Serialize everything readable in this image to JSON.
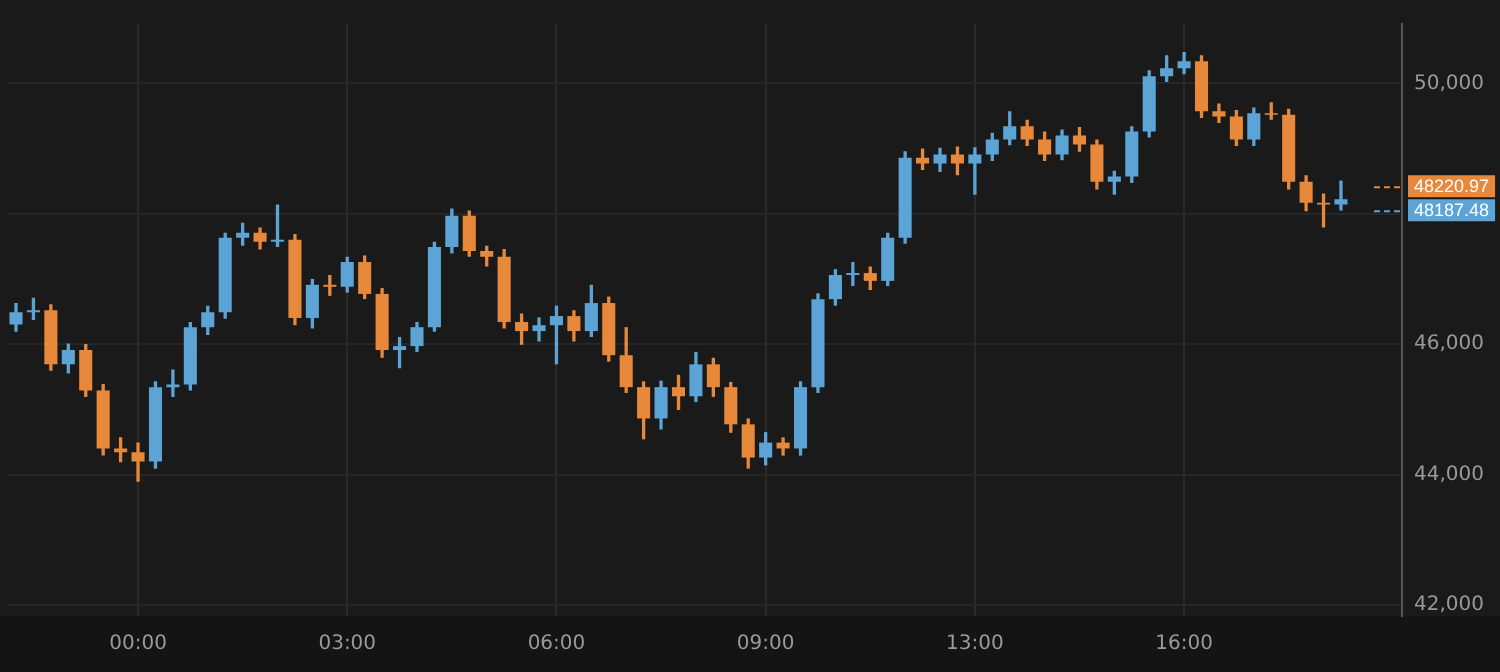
{
  "chart_data": {
    "type": "candlestick",
    "categories": [
      null,
      null,
      null,
      null,
      null,
      null,
      null,
      "00:00",
      null,
      null,
      null,
      null,
      null,
      null,
      null,
      null,
      null,
      null,
      null,
      "03:00",
      null,
      null,
      null,
      null,
      null,
      null,
      null,
      null,
      null,
      null,
      null,
      "06:00",
      null,
      null,
      null,
      null,
      null,
      null,
      null,
      null,
      null,
      null,
      null,
      "09:00",
      null,
      null,
      null,
      null,
      null,
      null,
      null,
      null,
      null,
      null,
      null,
      "13:00",
      null,
      null,
      null,
      null,
      null,
      null,
      null,
      null,
      null,
      null,
      null,
      "16:00",
      null,
      null,
      null,
      null,
      null,
      null,
      null,
      null,
      null,
      null,
      null,
      null
    ],
    "ohlc": [
      [
        46300,
        46620,
        46200,
        46490
      ],
      [
        46490,
        46700,
        46380,
        46520
      ],
      [
        46520,
        46600,
        45600,
        45690
      ],
      [
        45690,
        46000,
        45560,
        45910
      ],
      [
        45910,
        45990,
        45200,
        45290
      ],
      [
        45290,
        45380,
        44300,
        44400
      ],
      [
        44400,
        44560,
        44200,
        44340
      ],
      [
        44340,
        44480,
        43900,
        44200
      ],
      [
        44200,
        45420,
        44100,
        45340
      ],
      [
        45340,
        45600,
        45200,
        45380
      ],
      [
        45380,
        46330,
        45300,
        46260
      ],
      [
        46260,
        46580,
        46150,
        46490
      ],
      [
        46490,
        47700,
        46400,
        47630
      ],
      [
        47630,
        47850,
        47520,
        47710
      ],
      [
        47710,
        47780,
        47460,
        47570
      ],
      [
        47570,
        48130,
        47500,
        47600
      ],
      [
        47600,
        47680,
        46300,
        46400
      ],
      [
        46400,
        46990,
        46250,
        46910
      ],
      [
        46910,
        47050,
        46750,
        46880
      ],
      [
        46880,
        47330,
        46800,
        47260
      ],
      [
        47260,
        47350,
        46700,
        46770
      ],
      [
        46770,
        46850,
        45800,
        45910
      ],
      [
        45910,
        46100,
        45640,
        45970
      ],
      [
        45970,
        46330,
        45890,
        46260
      ],
      [
        46260,
        47560,
        46200,
        47490
      ],
      [
        47490,
        48070,
        47400,
        47970
      ],
      [
        47970,
        48040,
        47350,
        47430
      ],
      [
        47430,
        47500,
        47200,
        47340
      ],
      [
        47340,
        47450,
        46250,
        46340
      ],
      [
        46340,
        46460,
        46000,
        46200
      ],
      [
        46200,
        46400,
        46050,
        46290
      ],
      [
        46290,
        46580,
        45700,
        46430
      ],
      [
        46430,
        46510,
        46050,
        46200
      ],
      [
        46200,
        46900,
        46120,
        46630
      ],
      [
        46630,
        46720,
        45740,
        45830
      ],
      [
        45830,
        46250,
        45260,
        45340
      ],
      [
        45340,
        45420,
        44550,
        44860
      ],
      [
        44860,
        45430,
        44700,
        45340
      ],
      [
        45340,
        45520,
        45000,
        45200
      ],
      [
        45200,
        45870,
        45120,
        45690
      ],
      [
        45690,
        45780,
        45200,
        45340
      ],
      [
        45340,
        45410,
        44650,
        44770
      ],
      [
        44770,
        44850,
        44100,
        44260
      ],
      [
        44260,
        44640,
        44150,
        44490
      ],
      [
        44490,
        44560,
        44300,
        44400
      ],
      [
        44400,
        45420,
        44300,
        45340
      ],
      [
        45340,
        46770,
        45260,
        46690
      ],
      [
        46690,
        47140,
        46600,
        47060
      ],
      [
        47060,
        47250,
        46900,
        47090
      ],
      [
        47090,
        47180,
        46840,
        46970
      ],
      [
        46970,
        47700,
        46900,
        47630
      ],
      [
        47630,
        48950,
        47550,
        48860
      ],
      [
        48860,
        48990,
        48680,
        48770
      ],
      [
        48770,
        49000,
        48650,
        48910
      ],
      [
        48910,
        49020,
        48600,
        48770
      ],
      [
        48770,
        49010,
        48300,
        48910
      ],
      [
        48910,
        49230,
        48820,
        49140
      ],
      [
        49140,
        49560,
        49060,
        49340
      ],
      [
        49340,
        49430,
        49050,
        49140
      ],
      [
        49140,
        49250,
        48820,
        48910
      ],
      [
        48910,
        49280,
        48830,
        49200
      ],
      [
        49200,
        49320,
        48960,
        49060
      ],
      [
        49060,
        49130,
        48380,
        48490
      ],
      [
        48490,
        48650,
        48300,
        48570
      ],
      [
        48570,
        49330,
        48480,
        49260
      ],
      [
        49260,
        50190,
        49180,
        50110
      ],
      [
        50110,
        50420,
        50030,
        50230
      ],
      [
        50230,
        50470,
        50150,
        50340
      ],
      [
        50340,
        50420,
        49480,
        49570
      ],
      [
        49570,
        49680,
        49400,
        49490
      ],
      [
        49490,
        49580,
        49050,
        49140
      ],
      [
        49140,
        49620,
        49050,
        49540
      ],
      [
        49540,
        49700,
        49450,
        49520
      ],
      [
        49520,
        49600,
        48380,
        48490
      ],
      [
        48490,
        48580,
        48050,
        48170
      ],
      [
        48170,
        48300,
        47800,
        48140
      ],
      [
        48140,
        48500,
        48060,
        48220.97
      ],
      null,
      null,
      null
    ],
    "colors": [
      "#5ca4d6",
      "#5ca4d6",
      "#e8883a",
      "#5ca4d6",
      "#e8883a",
      "#e8883a",
      "#e8883a",
      "#e8883a",
      "#5ca4d6",
      "#5ca4d6",
      "#5ca4d6",
      "#5ca4d6",
      "#5ca4d6",
      "#5ca4d6",
      "#e8883a",
      "#5ca4d6",
      "#e8883a",
      "#5ca4d6",
      "#e8883a",
      "#5ca4d6",
      "#e8883a",
      "#e8883a",
      "#5ca4d6",
      "#5ca4d6",
      "#5ca4d6",
      "#5ca4d6",
      "#e8883a",
      "#e8883a",
      "#e8883a",
      "#e8883a",
      "#5ca4d6",
      "#5ca4d6",
      "#e8883a",
      "#5ca4d6",
      "#e8883a",
      "#e8883a",
      "#e8883a",
      "#5ca4d6",
      "#e8883a",
      "#5ca4d6",
      "#e8883a",
      "#e8883a",
      "#e8883a",
      "#5ca4d6",
      "#e8883a",
      "#5ca4d6",
      "#5ca4d6",
      "#5ca4d6",
      "#5ca4d6",
      "#e8883a",
      "#5ca4d6",
      "#5ca4d6",
      "#e8883a",
      "#5ca4d6",
      "#e8883a",
      "#5ca4d6",
      "#5ca4d6",
      "#5ca4d6",
      "#e8883a",
      "#e8883a",
      "#5ca4d6",
      "#e8883a",
      "#e8883a",
      "#5ca4d6",
      "#5ca4d6",
      "#5ca4d6",
      "#5ca4d6",
      "#5ca4d6",
      "#e8883a",
      "#e8883a",
      "#e8883a",
      "#5ca4d6",
      "#e8883a",
      "#e8883a",
      "#e8883a",
      "#e8883a",
      "#5ca4d6",
      null,
      null,
      null
    ],
    "ylim": [
      41830,
      50910
    ],
    "yticks": [
      {
        "value": 42000,
        "label": "42,000"
      },
      {
        "value": 44000,
        "label": "44,000"
      },
      {
        "value": 46000,
        "label": "46,000"
      },
      {
        "value": 48000,
        "label": null
      },
      {
        "value": 50000,
        "label": "50,000"
      }
    ],
    "annotations": [
      "48220.97",
      "48187.48"
    ],
    "grid": true,
    "legend": false
  }
}
